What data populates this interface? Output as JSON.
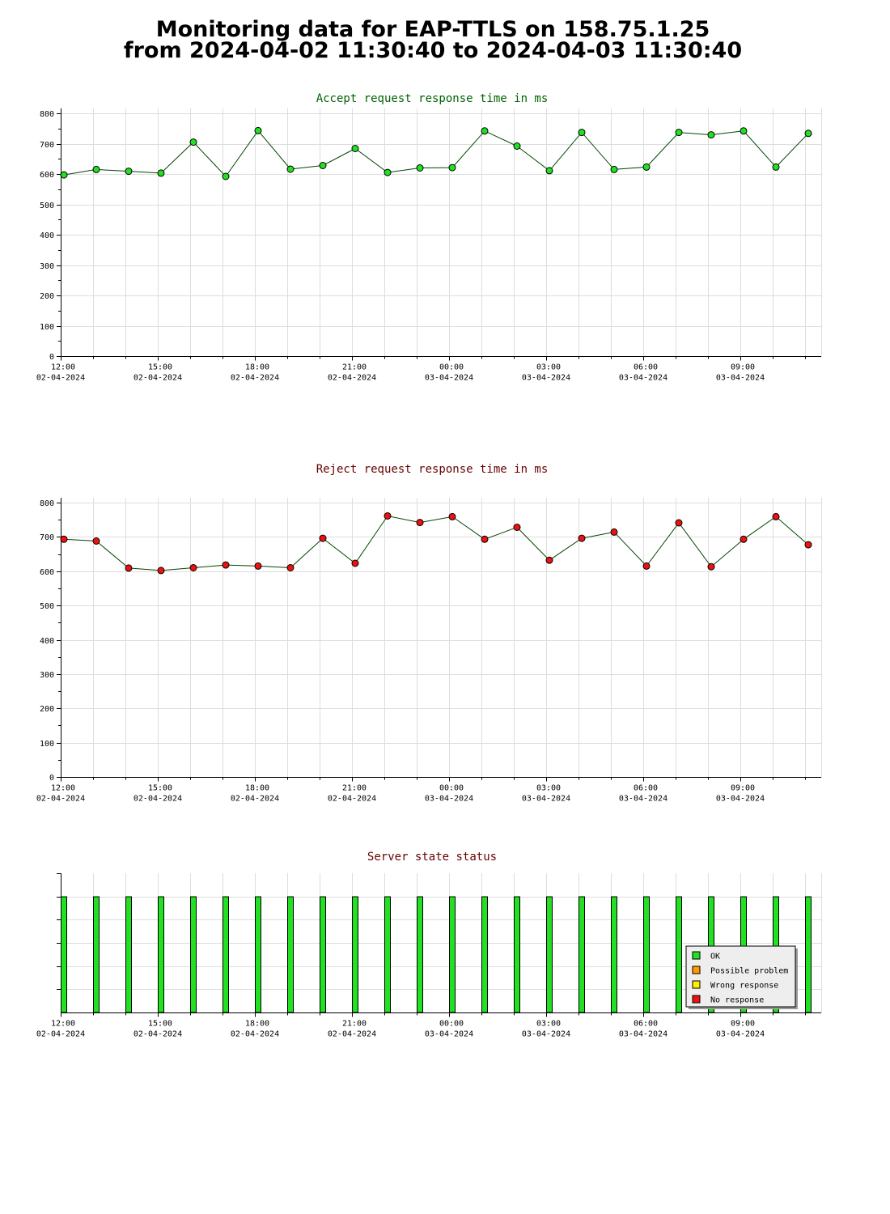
{
  "page": {
    "title_line1": "Monitoring data for EAP-TTLS on 158.75.1.25",
    "title_line2": "from 2024-04-02 11:30:40 to 2024-04-03 11:30:40"
  },
  "colors": {
    "accept_title": "#006400",
    "reject_title": "#660000",
    "status_title": "#660000",
    "accept_marker": "#22e022",
    "reject_marker": "#ee1111",
    "ok_bar": "#22e022",
    "grid": "#dddddd"
  },
  "x_axis": {
    "ticks": [
      {
        "time": "12:00",
        "date": "02-04-2024",
        "hour": 0
      },
      {
        "time": "15:00",
        "date": "02-04-2024",
        "hour": 3
      },
      {
        "time": "18:00",
        "date": "02-04-2024",
        "hour": 6
      },
      {
        "time": "21:00",
        "date": "02-04-2024",
        "hour": 9
      },
      {
        "time": "00:00",
        "date": "03-04-2024",
        "hour": 12
      },
      {
        "time": "03:00",
        "date": "03-04-2024",
        "hour": 15
      },
      {
        "time": "06:00",
        "date": "03-04-2024",
        "hour": 18
      },
      {
        "time": "09:00",
        "date": "03-04-2024",
        "hour": 21
      }
    ]
  },
  "chart_data": [
    {
      "type": "line",
      "title": "Accept request response time in ms",
      "ylim": [
        0,
        800
      ],
      "yticks": [
        0,
        100,
        200,
        300,
        400,
        500,
        600,
        700,
        800
      ],
      "grid": true,
      "x_hours": [
        0.1,
        1.1,
        2.1,
        3.1,
        4.1,
        5.1,
        6.1,
        7.1,
        8.1,
        9.1,
        10.1,
        11.1,
        12.1,
        13.1,
        14.1,
        15.1,
        16.1,
        17.1,
        18.1,
        19.1,
        20.1,
        21.1,
        22.1,
        23.1
      ],
      "series": [
        {
          "values": [
            597,
            615,
            609,
            603,
            705,
            592,
            743,
            616,
            628,
            684,
            605,
            620,
            621,
            742,
            692,
            611,
            737,
            615,
            623,
            737,
            729,
            742,
            623,
            734
          ]
        }
      ]
    },
    {
      "type": "line",
      "title": "Reject request response time in ms",
      "ylim": [
        0,
        800
      ],
      "yticks": [
        0,
        100,
        200,
        300,
        400,
        500,
        600,
        700,
        800
      ],
      "grid": true,
      "x_hours": [
        0.1,
        1.1,
        2.1,
        3.1,
        4.1,
        5.1,
        6.1,
        7.1,
        8.1,
        9.1,
        10.1,
        11.1,
        12.1,
        13.1,
        14.1,
        15.1,
        16.1,
        17.1,
        18.1,
        19.1,
        20.1,
        21.1,
        22.1,
        23.1
      ],
      "series": [
        {
          "values": [
            693,
            688,
            609,
            602,
            610,
            618,
            615,
            610,
            696,
            623,
            761,
            742,
            759,
            693,
            728,
            632,
            696,
            714,
            615,
            741,
            613,
            693,
            759,
            677
          ]
        }
      ]
    },
    {
      "type": "bar",
      "title": "Server state status",
      "grid": true,
      "x_hours": [
        0.1,
        1.1,
        2.1,
        3.1,
        4.1,
        5.1,
        6.1,
        7.1,
        8.1,
        9.1,
        10.1,
        11.1,
        12.1,
        13.1,
        14.1,
        15.1,
        16.1,
        17.1,
        18.1,
        19.1,
        20.1,
        21.1,
        22.1,
        23.1
      ],
      "states": [
        "OK",
        "OK",
        "OK",
        "OK",
        "OK",
        "OK",
        "OK",
        "OK",
        "OK",
        "OK",
        "OK",
        "OK",
        "OK",
        "OK",
        "OK",
        "OK",
        "OK",
        "OK",
        "OK",
        "OK",
        "OK",
        "OK",
        "OK",
        "OK"
      ],
      "legend_position": "bottom-right",
      "legend": [
        {
          "label": "OK",
          "color": "#22e022"
        },
        {
          "label": "Possible problem",
          "color": "#ff9900"
        },
        {
          "label": "Wrong response",
          "color": "#ffee00"
        },
        {
          "label": "No response",
          "color": "#ee1111"
        }
      ]
    }
  ]
}
